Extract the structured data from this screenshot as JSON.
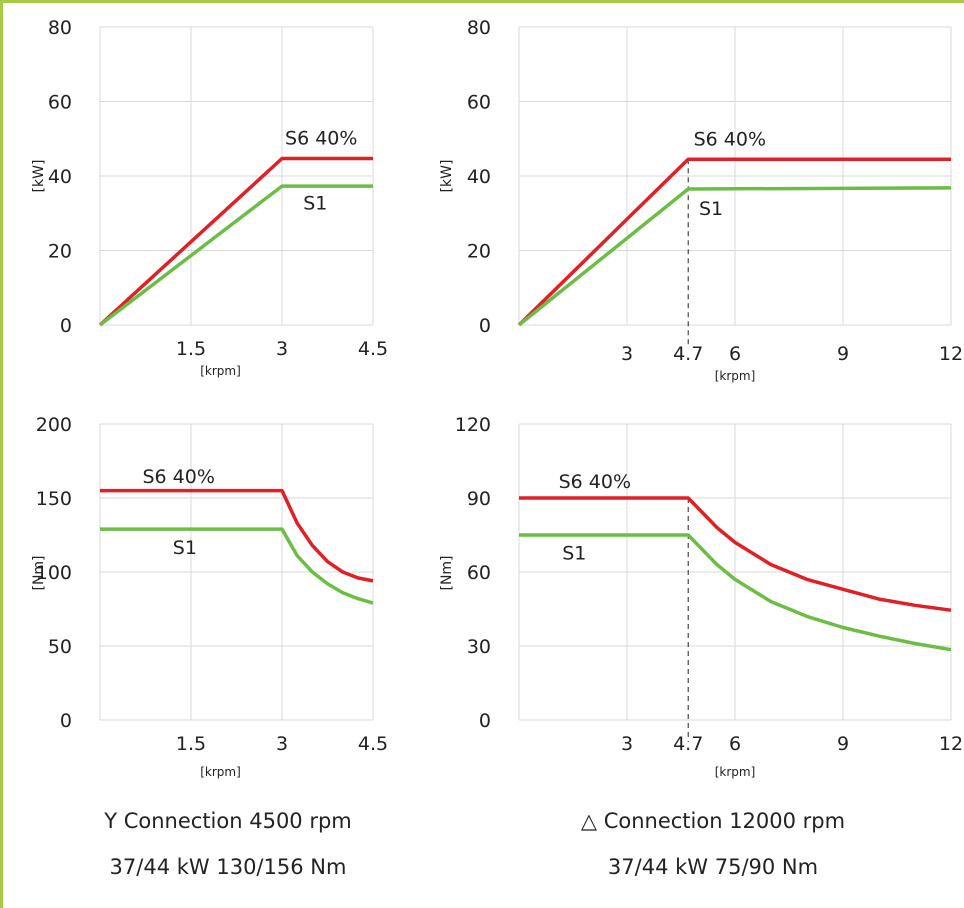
{
  "colors": {
    "s6": "#e02026",
    "s1": "#6cbd45",
    "grid": "#d9d9d9",
    "frame": "#a6cc45"
  },
  "captions": {
    "left_line1": "Y Connection 4500 rpm",
    "left_line2": "37/44 kW  130/156 Nm",
    "right_line1": "△ Connection 12000 rpm",
    "right_line2": "37/44 kW  75/90 Nm"
  },
  "chart_data": [
    {
      "type": "line",
      "ylabel": "[kW]",
      "xlabel": "[krpm]",
      "xlim": [
        0,
        4.5
      ],
      "ylim": [
        0,
        80
      ],
      "xticks": [
        1.5,
        3,
        4.5
      ],
      "xtick_labels": [
        "1.5",
        "3",
        "4.5"
      ],
      "yticks": [
        0,
        20,
        40,
        60,
        80
      ],
      "ytick_labels": [
        "0",
        "20",
        "40",
        "60",
        "80"
      ],
      "grid": true,
      "series": [
        {
          "name": "S6 40%",
          "color": "#e02026",
          "points": [
            [
              0,
              0
            ],
            [
              3,
              44.7
            ],
            [
              4.5,
              44.7
            ]
          ]
        },
        {
          "name": "S1",
          "color": "#6cbd45",
          "points": [
            [
              0,
              0
            ],
            [
              3,
              37.3
            ],
            [
              4.5,
              37.3
            ]
          ]
        }
      ]
    },
    {
      "type": "line",
      "ylabel": "[kW]",
      "xlabel": "[krpm]",
      "xlim": [
        0,
        12
      ],
      "ylim": [
        0,
        80
      ],
      "xticks": [
        3,
        4.7,
        6,
        9,
        12
      ],
      "xtick_labels": [
        "3",
        "4.7",
        "6",
        "9",
        "12"
      ],
      "yticks": [
        0,
        20,
        40,
        60,
        80
      ],
      "ytick_labels": [
        "0",
        "20",
        "40",
        "60",
        "80"
      ],
      "grid": true,
      "marker_line_x": 4.7,
      "series": [
        {
          "name": "S6 40%",
          "color": "#e02026",
          "points": [
            [
              0,
              0
            ],
            [
              4.7,
              44.5
            ],
            [
              12,
              44.5
            ]
          ]
        },
        {
          "name": "S1",
          "color": "#6cbd45",
          "points": [
            [
              0,
              0
            ],
            [
              4.7,
              36.5
            ],
            [
              12,
              36.8
            ]
          ]
        }
      ]
    },
    {
      "type": "line",
      "ylabel": "[Nm]",
      "xlabel": "[krpm]",
      "xlim": [
        0,
        4.5
      ],
      "ylim": [
        0,
        200
      ],
      "xticks": [
        1.5,
        3,
        4.5
      ],
      "xtick_labels": [
        "1.5",
        "3",
        "4.5"
      ],
      "yticks": [
        0,
        50,
        100,
        150,
        200
      ],
      "ytick_labels": [
        "0",
        "50",
        "100",
        "150",
        "200"
      ],
      "grid": true,
      "series": [
        {
          "name": "S6 40%",
          "color": "#e02026",
          "points": [
            [
              0,
              155
            ],
            [
              3,
              155
            ],
            [
              3.25,
              133
            ],
            [
              3.5,
              118
            ],
            [
              3.75,
              107
            ],
            [
              4,
              100
            ],
            [
              4.25,
              96
            ],
            [
              4.5,
              94
            ]
          ]
        },
        {
          "name": "S1",
          "color": "#6cbd45",
          "points": [
            [
              0,
              129
            ],
            [
              3,
              129
            ],
            [
              3.25,
              111
            ],
            [
              3.5,
              100
            ],
            [
              3.75,
              92
            ],
            [
              4,
              86
            ],
            [
              4.25,
              82
            ],
            [
              4.5,
              79
            ]
          ]
        }
      ]
    },
    {
      "type": "line",
      "ylabel": "[Nm]",
      "xlabel": "[krpm]",
      "xlim": [
        0,
        12
      ],
      "ylim": [
        0,
        120
      ],
      "xticks": [
        3,
        4.7,
        6,
        9,
        12
      ],
      "xtick_labels": [
        "3",
        "4.7",
        "6",
        "9",
        "12"
      ],
      "yticks": [
        0,
        30,
        60,
        90,
        120
      ],
      "ytick_labels": [
        "0",
        "30",
        "60",
        "90",
        "120"
      ],
      "grid": true,
      "marker_line_x": 4.7,
      "series": [
        {
          "name": "S6 40%",
          "color": "#e02026",
          "points": [
            [
              0,
              90
            ],
            [
              4.7,
              90
            ],
            [
              5.5,
              78
            ],
            [
              6,
              72
            ],
            [
              7,
              63
            ],
            [
              8,
              57
            ],
            [
              9,
              53
            ],
            [
              10,
              49
            ],
            [
              11,
              46.5
            ],
            [
              12,
              44.5
            ]
          ]
        },
        {
          "name": "S1",
          "color": "#6cbd45",
          "points": [
            [
              0,
              75
            ],
            [
              4.7,
              75
            ],
            [
              5.5,
              63
            ],
            [
              6,
              57
            ],
            [
              7,
              48
            ],
            [
              8,
              42
            ],
            [
              9,
              37.5
            ],
            [
              10,
              34
            ],
            [
              11,
              31
            ],
            [
              12,
              28.5
            ]
          ]
        }
      ]
    }
  ]
}
